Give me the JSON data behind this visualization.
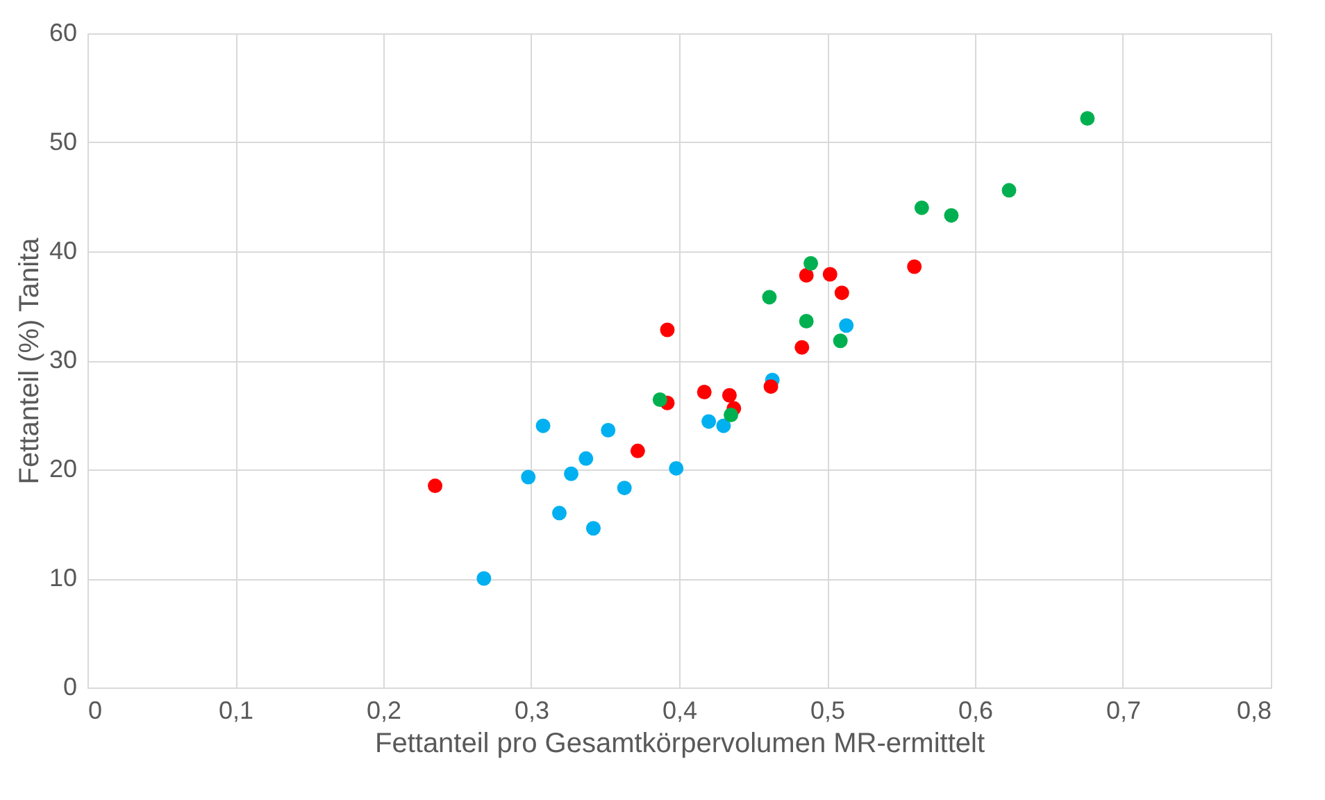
{
  "chart_data": {
    "type": "scatter",
    "xlabel": "Fettanteil pro Gesamtkörpervolumen MR-ermittelt",
    "ylabel": "Fettanteil (%) Tanita",
    "xlim": [
      0,
      0.8
    ],
    "xticks": [
      0,
      {
        "value": 0.1,
        "label": "0,1"
      },
      {
        "value": 0.2,
        "label": "0,2"
      },
      {
        "value": 0.3,
        "label": "0,3"
      },
      {
        "value": 0.4,
        "label": "0,4"
      },
      {
        "value": 0.5,
        "label": "0,5"
      },
      {
        "value": 0.6,
        "label": "0,6"
      },
      {
        "value": 0.7,
        "label": "0,7"
      },
      {
        "value": 0.8,
        "label": "0,8"
      }
    ],
    "ylim": [
      0,
      60
    ],
    "yticks": [
      0,
      10,
      20,
      30,
      40,
      50,
      60
    ],
    "grid": true,
    "marker": "circle",
    "series": [
      {
        "color": "#00b0f0",
        "x": [
          0.268,
          0.298,
          0.308,
          0.319,
          0.327,
          0.337,
          0.342,
          0.352,
          0.363,
          0.398,
          0.42,
          0.43,
          0.463,
          0.513
        ],
        "values": [
          10,
          19.3,
          24,
          16,
          19.6,
          21,
          14.6,
          23.6,
          18.3,
          20.1,
          24.4,
          24,
          28.2,
          33.2
        ]
      },
      {
        "color": "#ff0000",
        "x": [
          0.235,
          0.372,
          0.392,
          0.392,
          0.417,
          0.434,
          0.437,
          0.462,
          0.483,
          0.486,
          0.502,
          0.51,
          0.559
        ],
        "values": [
          18.5,
          21.7,
          26.1,
          32.8,
          27.1,
          26.8,
          25.6,
          27.6,
          31.2,
          37.8,
          37.9,
          36.2,
          38.6
        ]
      },
      {
        "color": "#00b050",
        "x": [
          0.387,
          0.435,
          0.461,
          0.486,
          0.489,
          0.509,
          0.564,
          0.584,
          0.623,
          0.676
        ],
        "values": [
          26.4,
          25,
          35.8,
          33.6,
          38.9,
          31.8,
          44,
          43.3,
          45.6,
          52.2
        ]
      }
    ]
  }
}
